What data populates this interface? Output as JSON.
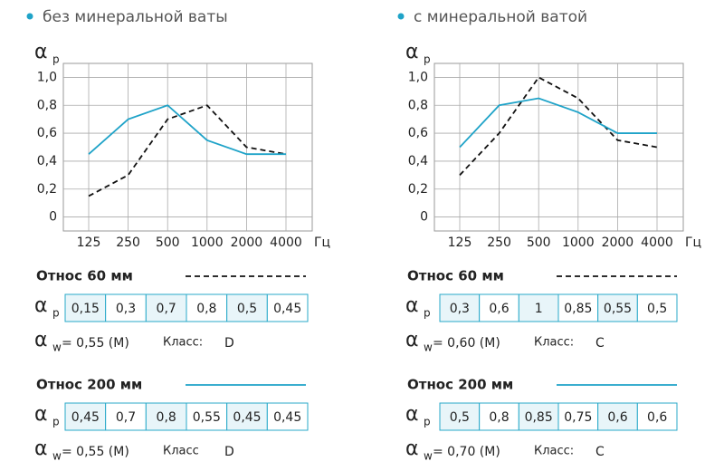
{
  "chart_data": [
    {
      "type": "line",
      "title": "без минеральной ваты",
      "y_label": "α",
      "y_label_sub": "p",
      "categories": [
        "125",
        "250",
        "500",
        "1000",
        "2000",
        "4000"
      ],
      "x_unit": "Гц",
      "ylim": [
        -0.1,
        1.1
      ],
      "yticks": [
        0,
        {
          "value": 0.2,
          "label": "0,2"
        },
        {
          "value": 0.4,
          "label": "0,4"
        },
        {
          "value": 0.6,
          "label": "0,6"
        },
        {
          "value": 0.8,
          "label": "0,8"
        },
        {
          "value": 1,
          "label": "1,0"
        }
      ],
      "grid": true,
      "series": [
        {
          "name": "Относ 60 мм",
          "color": "#111111",
          "line_style": "dashed",
          "values": [
            0.15,
            0.3,
            0.7,
            0.8,
            0.5,
            0.45
          ],
          "value_labels": [
            "0,15",
            "0,3",
            "0,7",
            "0,8",
            "0,5",
            "0,45"
          ],
          "rating_symbol": "α",
          "rating_sub": "w",
          "rating": "= 0,55 (M)",
          "class_label": "Класс:",
          "class": "D"
        },
        {
          "name": "Относ 200 мм",
          "color": "#1fa3c8",
          "line_style": "solid",
          "values": [
            0.45,
            0.7,
            0.8,
            0.55,
            0.45,
            0.45
          ],
          "value_labels": [
            "0,45",
            "0,7",
            "0,8",
            "0,55",
            "0,45",
            "0,45"
          ],
          "rating_symbol": "α",
          "rating_sub": "w",
          "rating": "= 0,55 (M)",
          "class_label": "Класс",
          "class": "D"
        }
      ]
    },
    {
      "type": "line",
      "title": "с минеральной ватой",
      "y_label": "α",
      "y_label_sub": "p",
      "categories": [
        "125",
        "250",
        "500",
        "1000",
        "2000",
        "4000"
      ],
      "x_unit": "Гц",
      "ylim": [
        -0.1,
        1.1
      ],
      "yticks": [
        0,
        {
          "value": 0.2,
          "label": "0,2"
        },
        {
          "value": 0.4,
          "label": "0,4"
        },
        {
          "value": 0.6,
          "label": "0,6"
        },
        {
          "value": 0.8,
          "label": "0,8"
        },
        {
          "value": 1,
          "label": "1,0"
        }
      ],
      "grid": true,
      "series": [
        {
          "name": "Относ 60 мм",
          "color": "#111111",
          "line_style": "dashed",
          "values": [
            0.3,
            0.6,
            1,
            0.85,
            0.55,
            0.5
          ],
          "value_labels": [
            "0,3",
            "0,6",
            "1",
            "0,85",
            "0,55",
            "0,5"
          ],
          "rating_symbol": "α",
          "rating_sub": "w",
          "rating": "= 0,60 (M)",
          "class_label": "Класс:",
          "class": "C"
        },
        {
          "name": "Относ 200 мм",
          "color": "#1fa3c8",
          "line_style": "solid",
          "values": [
            0.5,
            0.8,
            0.85,
            0.75,
            0.6,
            0.6
          ],
          "value_labels": [
            "0,5",
            "0,8",
            "0,85",
            "0,75",
            "0,6",
            "0,6"
          ],
          "rating_symbol": "α",
          "rating_sub": "w",
          "rating": "= 0,70 (M)",
          "class_label": "Класс:",
          "class": "C"
        }
      ]
    }
  ]
}
